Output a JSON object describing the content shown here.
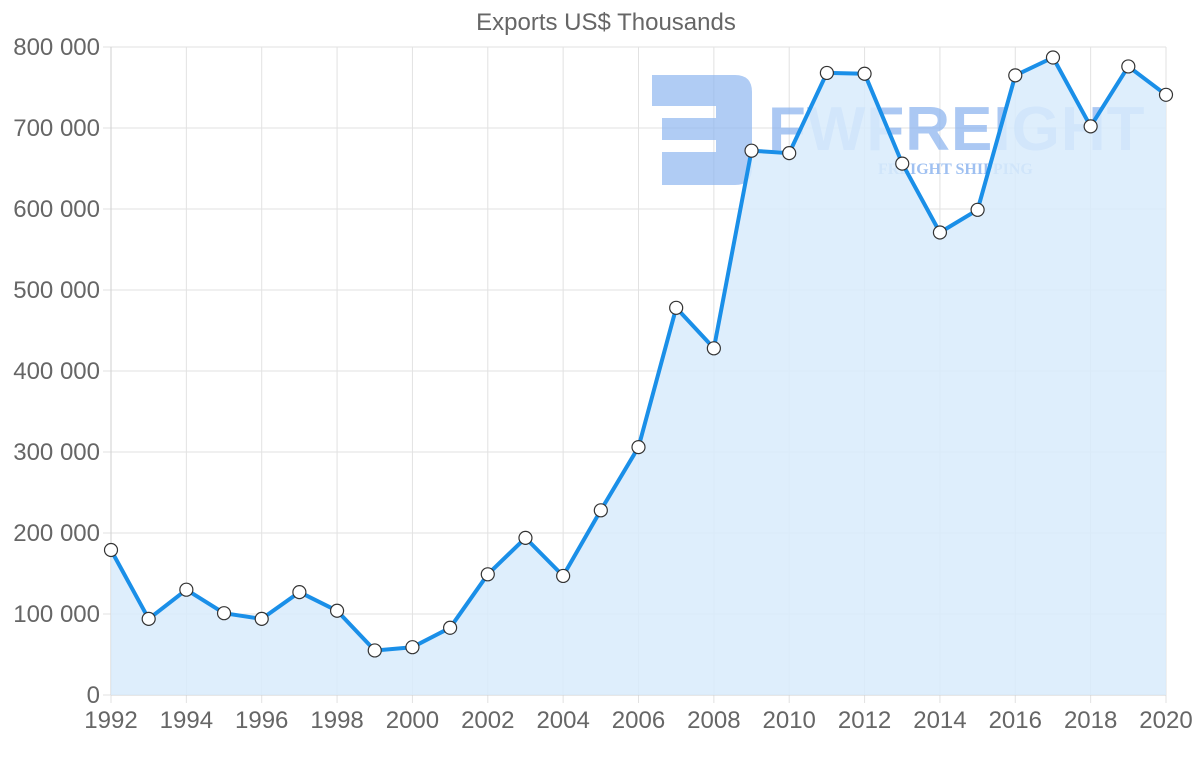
{
  "chart_data": {
    "type": "line",
    "title": "Exports US$ Thousands",
    "xlabel": "",
    "ylabel": "",
    "x": [
      1992,
      1993,
      1994,
      1995,
      1996,
      1997,
      1998,
      1999,
      2000,
      2001,
      2002,
      2003,
      2004,
      2005,
      2006,
      2007,
      2008,
      2009,
      2010,
      2011,
      2012,
      2013,
      2014,
      2015,
      2016,
      2017,
      2018,
      2019,
      2020
    ],
    "series": [
      {
        "name": "Exports US$ Thousands",
        "values": [
          179000,
          94000,
          130000,
          101000,
          94000,
          127000,
          104000,
          55000,
          59000,
          83000,
          149000,
          194000,
          147000,
          228000,
          306000,
          478000,
          428000,
          672000,
          669000,
          768000,
          767000,
          656000,
          571000,
          599000,
          765000,
          787000,
          702000,
          776000,
          741000
        ],
        "line_color": "#1a8fe8",
        "fill_color": "#d8ebfc",
        "marker_fill": "#ffffff",
        "marker_stroke": "#333333"
      }
    ],
    "xlim": [
      1992,
      2020
    ],
    "ylim": [
      0,
      800000
    ],
    "x_ticks": [
      "1992",
      "1994",
      "1996",
      "1998",
      "2000",
      "2002",
      "2004",
      "2006",
      "2008",
      "2010",
      "2012",
      "2014",
      "2016",
      "2018",
      "2020"
    ],
    "y_ticks": [
      "0",
      "100 000",
      "200 000",
      "300 000",
      "400 000",
      "500 000",
      "600 000",
      "700 000",
      "800 000"
    ],
    "grid": true,
    "legend": "none",
    "area_fill": true
  },
  "watermark": {
    "brand": "FWFREIGHT",
    "tagline": "FREIGHT SHIPPING",
    "color": "#8fb6ef"
  }
}
